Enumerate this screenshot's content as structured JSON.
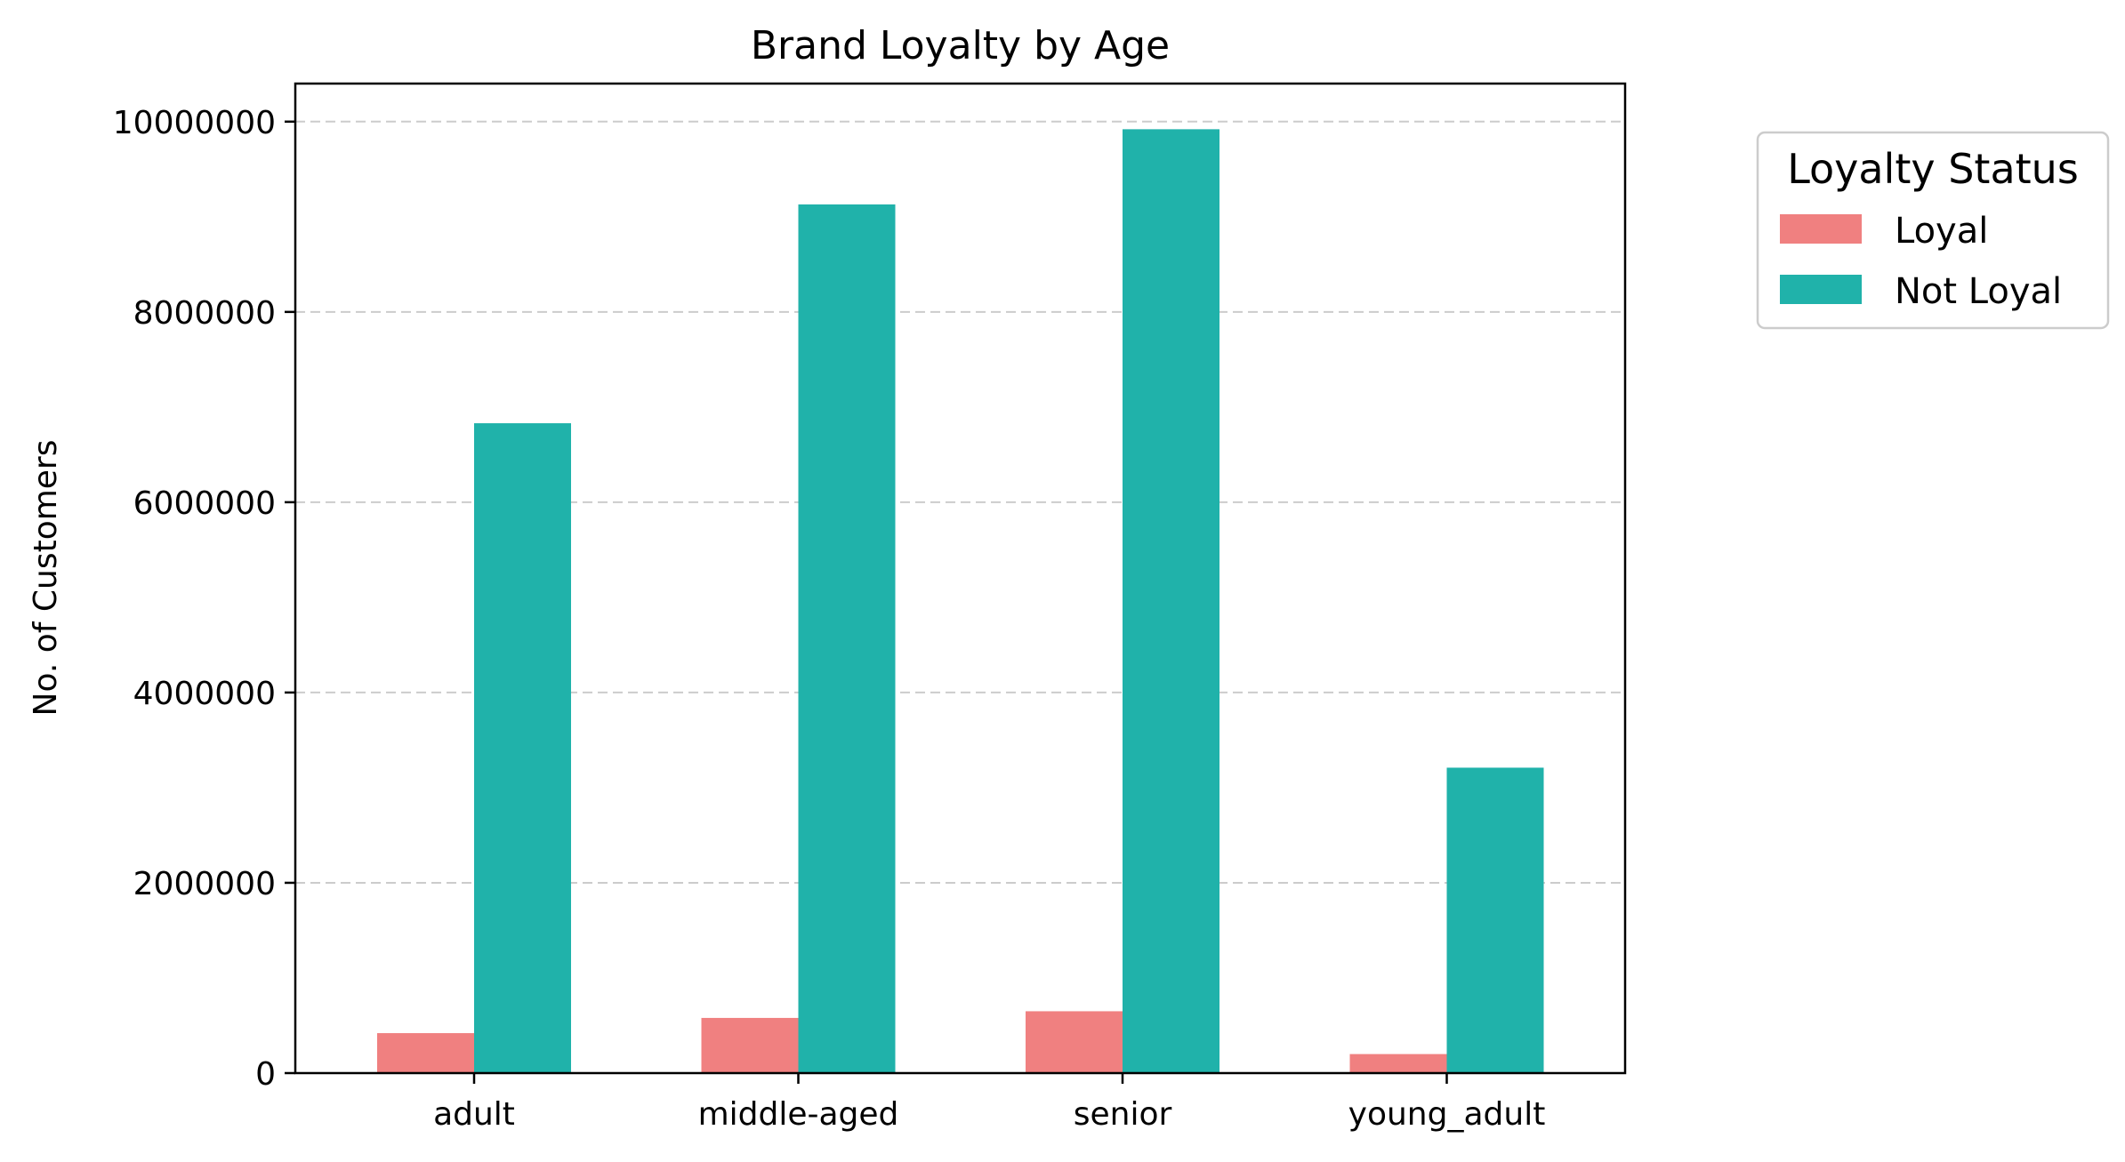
{
  "chart_data": {
    "type": "bar",
    "title": "Brand Loyalty by Age",
    "xlabel": "",
    "ylabel": "No. of Customers",
    "categories": [
      "adult",
      "middle-aged",
      "senior",
      "young_adult"
    ],
    "series": [
      {
        "name": "Loyal",
        "color": "#f08080",
        "values": [
          420000,
          580000,
          650000,
          200000
        ]
      },
      {
        "name": "Not Loyal",
        "color": "#20b2aa",
        "values": [
          6830000,
          9130000,
          9920000,
          3210000
        ]
      }
    ],
    "ylim": [
      0,
      10400000
    ],
    "yticks": [
      0,
      2000000,
      4000000,
      6000000,
      8000000,
      10000000
    ],
    "ytick_labels": [
      "0",
      "2000000",
      "4000000",
      "6000000",
      "8000000",
      "10000000"
    ],
    "grid": {
      "axis": "y",
      "style": "dashed",
      "color": "#cccccc"
    },
    "legend": {
      "title": "Loyalty Status",
      "placement": "outside-top-right"
    }
  }
}
